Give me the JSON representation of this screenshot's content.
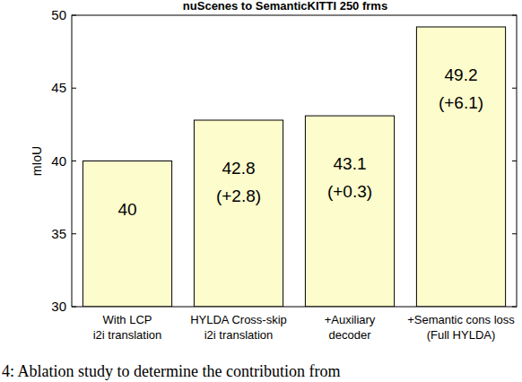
{
  "chart_data": {
    "type": "bar",
    "title": "nuScenes to SemanticKITTI 250 frms",
    "y_label": "mIoU",
    "categories": [
      "With LCP\ni2i translation",
      "HYLDA Cross-skip\ni2i translation",
      "+Auxiliary\ndecoder",
      "+Semantic cons loss\n(Full HYLDA)"
    ],
    "values": [
      40,
      42.8,
      43.1,
      49.2
    ],
    "value_labels": [
      "40",
      "42.8\n(+2.8)",
      "43.1\n(+0.3)",
      "49.2\n(+6.1)"
    ],
    "data_labels": true,
    "color": "#fcfccc",
    "ylim": [
      30,
      50
    ],
    "yticks": [
      30,
      35,
      40,
      45,
      50
    ],
    "grid": false,
    "annotations": [
      "4: Ablation study to determine the contribution from"
    ]
  }
}
